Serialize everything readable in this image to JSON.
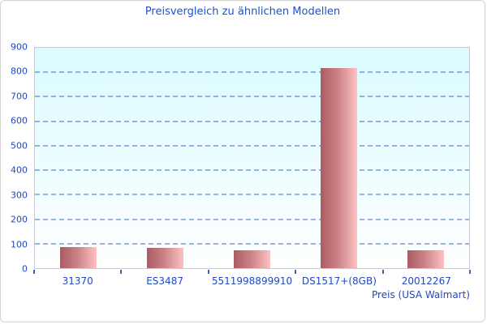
{
  "title": "Preisvergleich zu ähnlichen Modellen",
  "chart_data": {
    "type": "bar",
    "title": "Preisvergleich zu ähnlichen Modellen",
    "categories": [
      "31370",
      "ES3487",
      "5511998899910",
      "DS1517+(8GB)",
      "20012267"
    ],
    "values": [
      87,
      84,
      72,
      817,
      72
    ],
    "xlabel": "Preis (USA Walmart)",
    "ylabel": "",
    "ylim": [
      0,
      900
    ],
    "ytick_step": 100,
    "grid": "horizontal-dashed",
    "legend": "none",
    "colors": {
      "title_text": "#1c51d6",
      "axis_text": "#2049c2",
      "gridline": "#3a68c4",
      "tick_mark": "#3366cc",
      "plot_border": "#c5cbd1",
      "figure_border": "#d3d3d3",
      "plot_bg_top": "#d9fbff",
      "plot_bg_bottom": "#ffffff",
      "bar_gradient_left": "#ab5c62",
      "bar_gradient_right": "#fdc2c3"
    }
  }
}
